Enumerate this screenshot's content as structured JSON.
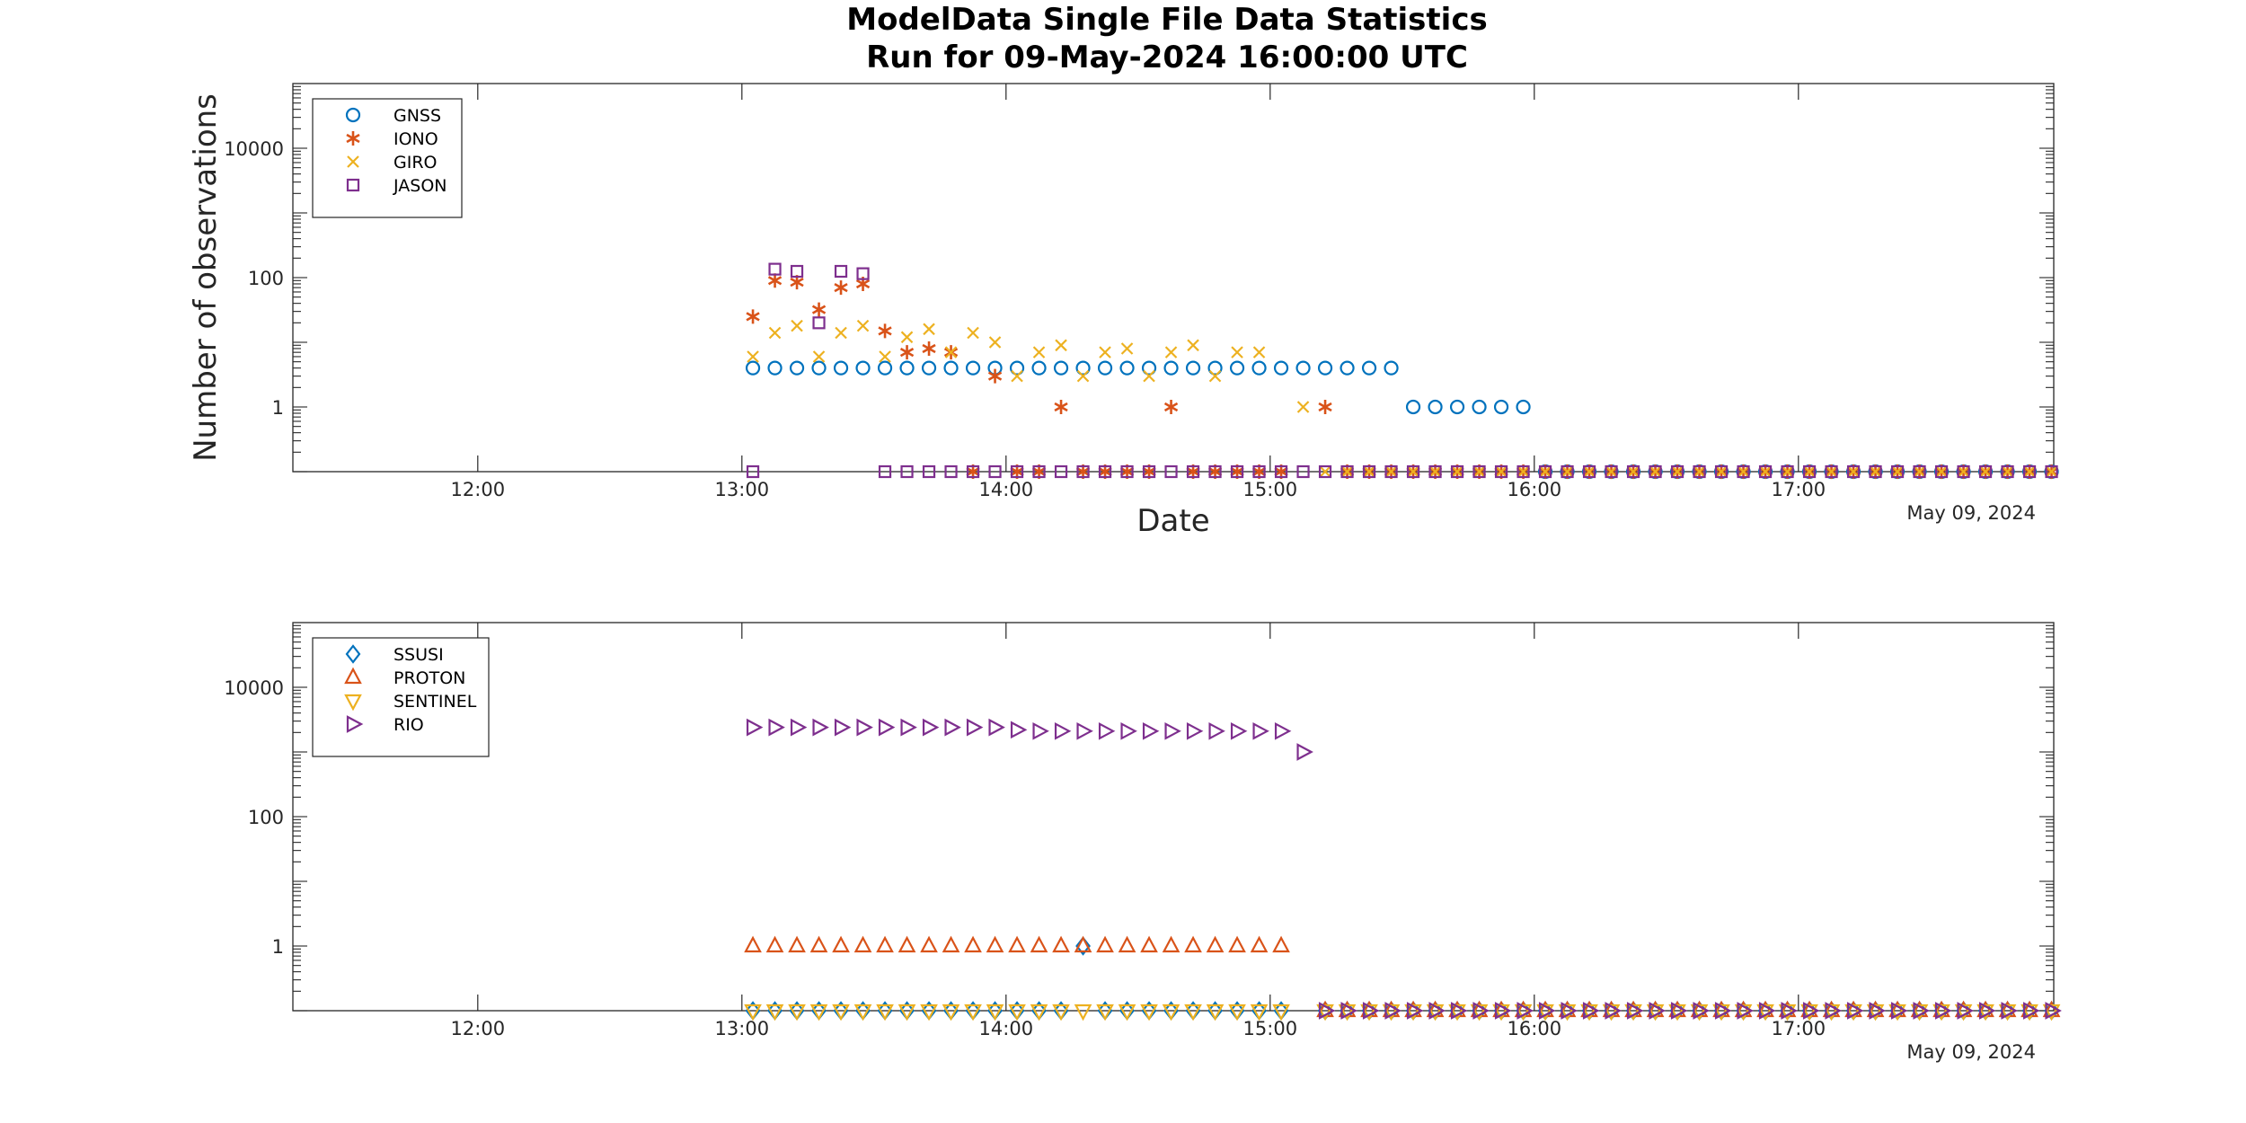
{
  "figure": {
    "title_line1": "ModelData Single File Data Statistics",
    "title_line2": "Run for 09-May-2024 16:00:00 UTC",
    "time_start": 13.0,
    "time_step_min": 5
  },
  "chart_data": [
    {
      "type": "scatter",
      "xlabel": "Date",
      "ylabel": "Number of observations",
      "date_label": "May 09, 2024",
      "y_scale": "log",
      "xlim": [
        "11:18",
        "17:58"
      ],
      "ylim": [
        0.1,
        100000
      ],
      "x_ticks": [
        "12:00",
        "13:00",
        "14:00",
        "15:00",
        "16:00",
        "17:00"
      ],
      "y_ticks": [
        "1",
        "100",
        "10000"
      ],
      "legend_position": "top-left",
      "series": [
        {
          "name": "GNSS",
          "marker": "circle",
          "color": "#0072BD",
          "values": [
            4,
            4,
            4,
            4,
            4,
            4,
            4,
            4,
            4,
            4,
            4,
            4,
            4,
            4,
            4,
            4,
            4,
            4,
            4,
            4,
            4,
            4,
            4,
            4,
            4,
            4,
            4,
            4,
            4,
            4,
            1,
            1,
            1,
            1,
            1,
            1,
            0.1,
            0.1,
            0.1,
            0.1,
            0.1,
            0.1,
            0.1,
            0.1,
            0.1,
            0.1,
            0.1,
            0.1,
            0.1,
            0.1,
            0.1,
            0.1,
            0.1,
            0.1,
            0.1,
            0.1,
            0.1,
            0.1,
            0.1,
            0.1,
            0.1,
            0.1,
            0.1,
            0.1,
            0.1,
            0.1,
            0.1,
            0.1,
            0.1,
            0.1,
            0.1
          ]
        },
        {
          "name": "IONO",
          "marker": "asterisk",
          "color": "#D95319",
          "values": [
            25,
            90,
            85,
            32,
            70,
            80,
            15,
            7,
            8,
            7,
            0.1,
            3,
            0.1,
            0.1,
            1,
            0.1,
            0.1,
            0.1,
            0.1,
            1,
            0.1,
            0.1,
            0.1,
            0.1,
            0.1,
            null,
            1,
            0.1,
            0.1,
            0.1,
            0.1,
            0.1,
            0.1,
            0.1,
            0.1,
            0.1,
            0.1,
            0.1,
            0.1,
            0.1,
            0.1,
            0.1,
            0.1,
            0.1,
            0.1,
            0.1,
            0.1,
            0.1,
            0.1,
            0.1,
            0.1,
            0.1,
            0.1,
            0.1,
            0.1,
            0.1,
            0.1,
            0.1,
            0.1,
            0.1,
            0.1,
            0.1,
            0.1,
            0.1,
            0.1,
            0.1,
            0.1,
            0.1,
            0.1,
            0.1,
            0.1
          ]
        },
        {
          "name": "GIRO",
          "marker": "x",
          "color": "#EDB120",
          "values": [
            6,
            14,
            18,
            6,
            14,
            18,
            6,
            12,
            16,
            7,
            14,
            10,
            3,
            7,
            9,
            3,
            7,
            8,
            3,
            7,
            9,
            3,
            7,
            7,
            null,
            1,
            0.1,
            0.1,
            0.1,
            0.1,
            0.1,
            0.1,
            0.1,
            0.1,
            0.1,
            0.1,
            0.1,
            0.1,
            0.1,
            0.1,
            0.1,
            0.1,
            0.1,
            0.1,
            0.1,
            0.1,
            0.1,
            0.1,
            0.1,
            0.1,
            0.1,
            0.1,
            0.1,
            0.1,
            0.1,
            0.1,
            0.1,
            0.1,
            0.1,
            0.1,
            0.1,
            0.1,
            0.1,
            0.1,
            0.1,
            0.1,
            0.1,
            0.1,
            0.1,
            0.1,
            0.1
          ]
        },
        {
          "name": "JASON",
          "marker": "square",
          "color": "#7E2F8E",
          "values": [
            0.1,
            135,
            125,
            20,
            125,
            115,
            0.1,
            0.1,
            0.1,
            0.1,
            0.1,
            0.1,
            0.1,
            0.1,
            0.1,
            0.1,
            0.1,
            0.1,
            0.1,
            0.1,
            0.1,
            0.1,
            0.1,
            0.1,
            0.1,
            0.1,
            0.1,
            0.1,
            0.1,
            0.1,
            0.1,
            0.1,
            0.1,
            0.1,
            0.1,
            0.1,
            0.1,
            0.1,
            0.1,
            0.1,
            0.1,
            0.1,
            0.1,
            0.1,
            0.1,
            0.1,
            0.1,
            0.1,
            0.1,
            0.1,
            0.1,
            0.1,
            0.1,
            0.1,
            0.1,
            0.1,
            0.1,
            0.1,
            0.1,
            0.1,
            0.1,
            0.1,
            0.1,
            0.1,
            0.1,
            0.1,
            0.1,
            0.1,
            0.1,
            0.1,
            0.1
          ]
        }
      ]
    },
    {
      "type": "scatter",
      "xlabel": "",
      "ylabel": "",
      "date_label": "May 09, 2024",
      "y_scale": "log",
      "xlim": [
        "11:18",
        "17:58"
      ],
      "ylim": [
        0.1,
        100000
      ],
      "x_ticks": [
        "12:00",
        "13:00",
        "14:00",
        "15:00",
        "16:00",
        "17:00"
      ],
      "y_ticks": [
        "1",
        "100",
        "10000"
      ],
      "legend_position": "top-left",
      "series": [
        {
          "name": "SSUSI",
          "marker": "diamond",
          "color": "#0072BD",
          "values": [
            0.1,
            0.1,
            0.1,
            0.1,
            0.1,
            0.1,
            0.1,
            0.1,
            0.1,
            0.1,
            0.1,
            0.1,
            0.1,
            0.1,
            0.1,
            1,
            0.1,
            0.1,
            0.1,
            0.1,
            0.1,
            0.1,
            0.1,
            0.1,
            0.1,
            null,
            0.1,
            0.1,
            0.1,
            0.1,
            0.1,
            0.1,
            0.1,
            0.1,
            0.1,
            0.1,
            0.1,
            0.1,
            0.1,
            0.1,
            0.1,
            0.1,
            0.1,
            0.1,
            0.1,
            0.1,
            0.1,
            0.1,
            0.1,
            0.1,
            0.1,
            0.1,
            0.1,
            0.1,
            0.1,
            0.1,
            0.1,
            0.1,
            0.1,
            0.1,
            0.1,
            0.1,
            0.1,
            0.1,
            0.1,
            0.1,
            0.1,
            0.1,
            0.1,
            0.1,
            0.1
          ]
        },
        {
          "name": "PROTON",
          "marker": "triangle-up",
          "color": "#D95319",
          "values": [
            1,
            1,
            1,
            1,
            1,
            1,
            1,
            1,
            1,
            1,
            1,
            1,
            1,
            1,
            1,
            1,
            1,
            1,
            1,
            1,
            1,
            1,
            1,
            1,
            1,
            null,
            0.1,
            0.1,
            0.1,
            0.1,
            0.1,
            0.1,
            0.1,
            0.1,
            0.1,
            0.1,
            0.1,
            0.1,
            0.1,
            0.1,
            0.1,
            0.1,
            0.1,
            0.1,
            0.1,
            0.1,
            0.1,
            0.1,
            0.1,
            0.1,
            0.1,
            0.1,
            0.1,
            0.1,
            0.1,
            0.1,
            0.1,
            0.1,
            0.1,
            0.1,
            0.1,
            0.1,
            0.1,
            0.1,
            0.1,
            0.1,
            0.1,
            0.1,
            0.1,
            0.1,
            0.1
          ]
        },
        {
          "name": "SENTINEL",
          "marker": "triangle-down",
          "color": "#EDB120",
          "values": [
            0.1,
            0.1,
            0.1,
            0.1,
            0.1,
            0.1,
            0.1,
            0.1,
            0.1,
            0.1,
            0.1,
            0.1,
            0.1,
            0.1,
            0.1,
            0.1,
            0.1,
            0.1,
            0.1,
            0.1,
            0.1,
            0.1,
            0.1,
            0.1,
            0.1,
            null,
            0.1,
            0.1,
            0.1,
            0.1,
            0.1,
            0.1,
            0.1,
            0.1,
            0.1,
            0.1,
            0.1,
            0.1,
            0.1,
            0.1,
            0.1,
            0.1,
            0.1,
            0.1,
            0.1,
            0.1,
            0.1,
            0.1,
            0.1,
            0.1,
            0.1,
            0.1,
            0.1,
            0.1,
            0.1,
            0.1,
            0.1,
            0.1,
            0.1,
            0.1,
            0.1,
            0.1,
            0.1,
            0.1,
            0.1,
            0.1,
            0.1,
            0.1,
            0.1,
            0.1,
            0.1
          ]
        },
        {
          "name": "RIO",
          "marker": "triangle-right",
          "color": "#7E2F8E",
          "values": [
            2400,
            2400,
            2400,
            2400,
            2400,
            2400,
            2400,
            2400,
            2400,
            2400,
            2400,
            2400,
            2200,
            2100,
            2100,
            2100,
            2100,
            2100,
            2100,
            2100,
            2100,
            2100,
            2100,
            2100,
            2100,
            1000,
            0.1,
            0.1,
            0.1,
            0.1,
            0.1,
            0.1,
            0.1,
            0.1,
            0.1,
            0.1,
            0.1,
            0.1,
            0.1,
            0.1,
            0.1,
            0.1,
            0.1,
            0.1,
            0.1,
            0.1,
            0.1,
            0.1,
            0.1,
            0.1,
            0.1,
            0.1,
            0.1,
            0.1,
            0.1,
            0.1,
            0.1,
            0.1,
            0.1,
            0.1,
            0.1,
            0.1,
            0.1,
            0.1,
            0.1,
            0.1,
            0.1,
            0.1,
            0.1,
            0.1,
            0.1
          ]
        }
      ]
    }
  ]
}
